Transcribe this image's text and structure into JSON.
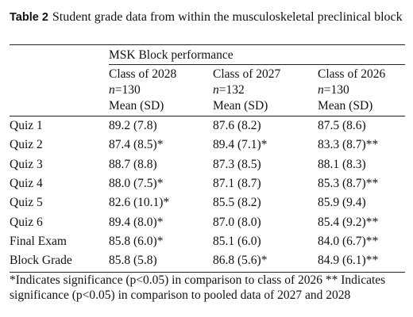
{
  "caption": {
    "label": "Table 2",
    "text": "Student grade data from within the musculoskeletal preclinical block"
  },
  "table": {
    "group_header": "MSK Block performance",
    "columns": [
      {
        "class": "Class of 2028",
        "n": "n=130",
        "stat": "Mean (SD)"
      },
      {
        "class": "Class of 2027",
        "n": "n=132",
        "stat": "Mean (SD)"
      },
      {
        "class": "Class of 2026",
        "n": "n=130",
        "stat": "Mean (SD)"
      }
    ],
    "rows": [
      [
        "Quiz 1",
        "89.2 (7.8)",
        "87.6 (8.2)",
        "87.5 (8.6)"
      ],
      [
        "Quiz 2",
        "87.4 (8.5)*",
        "89.4 (7.1)*",
        "83.3 (8.7)**"
      ],
      [
        "Quiz 3",
        "88.7 (8.8)",
        "87.3 (8.5)",
        "88.1 (8.3)"
      ],
      [
        "Quiz 4",
        "88.0 (7.5)*",
        "87.1 (8.7)",
        "85.3 (8.7)**"
      ],
      [
        "Quiz 5",
        "82.6 (10.1)*",
        "85.5 (8.2)",
        "85.9 (9.4)"
      ],
      [
        "Quiz 6",
        "89.4 (8.0)*",
        "87.0 (8.0)",
        "85.4 (9.2)**"
      ],
      [
        "Final Exam",
        "85.8 (6.0)*",
        "85.1 (6.0)",
        "84.0 (6.7)**"
      ],
      [
        "Block Grade",
        "85.8 (5.8)",
        "86.8 (5.6)*",
        "84.9 (6.1)**"
      ]
    ]
  },
  "footnotes": [
    "*Indicates significance (p<0.05) in comparison to class of 2026",
    "** Indicates significance (p<0.05) in comparison to pooled data of 2027 and 2028"
  ]
}
